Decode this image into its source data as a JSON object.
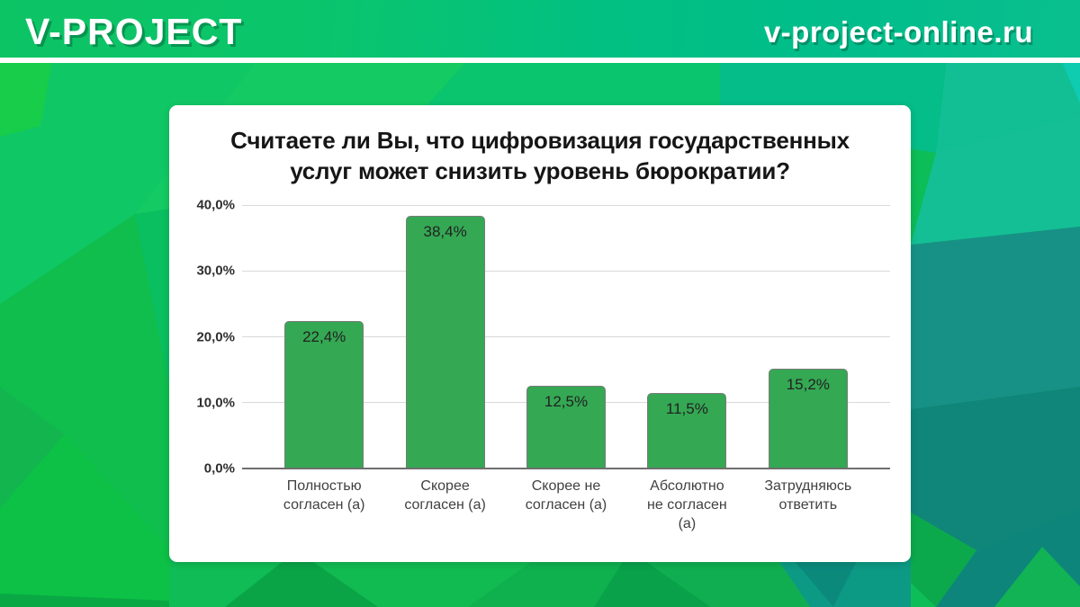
{
  "header": {
    "brand": "V-PROJECT",
    "site_url": "v-project-online.ru"
  },
  "card": {
    "title_lines": [
      "Считаете ли Вы, что цифровизация государственных",
      "услуг может снизить уровень бюрократии?"
    ]
  },
  "chart_data": {
    "type": "bar",
    "title": "Считаете ли Вы, что цифровизация государственных услуг может снизить уровень бюрократии?",
    "categories": [
      "Полностью согласен (а)",
      "Скорее согласен (а)",
      "Скорее не согласен (а)",
      "Абсолютно не согласен (а)",
      "Затрудняюсь ответить"
    ],
    "category_lines": [
      [
        "Полностью",
        "согласен (а)"
      ],
      [
        "Скорее",
        "согласен (а)"
      ],
      [
        "Скорее не",
        "согласен (а)"
      ],
      [
        "Абсолютно",
        "не согласен",
        "(а)"
      ],
      [
        "Затрудняюсь",
        "ответить"
      ]
    ],
    "values": [
      22.4,
      38.4,
      12.5,
      11.5,
      15.2
    ],
    "value_labels": [
      "22,4%",
      "38,4%",
      "12,5%",
      "11,5%",
      "15,2%"
    ],
    "y_ticks": [
      {
        "value": 40,
        "label": "40,0%"
      },
      {
        "value": 30,
        "label": "30,0%"
      },
      {
        "value": 20,
        "label": "20,0%"
      },
      {
        "value": 10,
        "label": "10,0%"
      },
      {
        "value": 0,
        "label": "0,0%"
      }
    ],
    "ylim": [
      0,
      40
    ],
    "grid": true,
    "legend_position": "none",
    "xlabel": "",
    "ylabel": "",
    "bar_color": "#34a853",
    "bar_border_color": "#7b7b7b",
    "grid_color": "#d9d9d9",
    "axis_color": "#6f6f6f"
  },
  "colors": {
    "header_green": "#0cc464",
    "header_teal": "#00bd8b",
    "divider_white": "#ffffff",
    "bg_green_bright": "#10c765",
    "bg_teal": "#12bf95",
    "bg_teal_dark": "#128d80",
    "card_bg": "#ffffff"
  }
}
